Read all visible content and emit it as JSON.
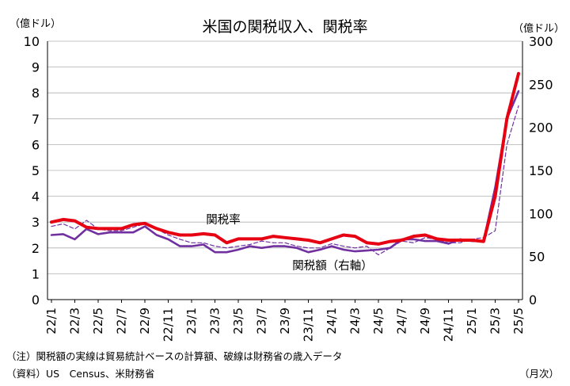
{
  "chart_data": {
    "type": "line",
    "title": "米国の関税収入、関税率",
    "left_axis": {
      "label": "（億ドル）",
      "min": 0,
      "max": 10,
      "ticks": [
        0,
        1,
        2,
        3,
        4,
        5,
        6,
        7,
        8,
        9,
        10
      ]
    },
    "right_axis": {
      "label": "（億ドル）",
      "min": 0,
      "max": 300,
      "ticks": [
        0,
        50,
        100,
        150,
        200,
        250,
        300
      ]
    },
    "xlabel": "（月次）",
    "x_tick_labels": [
      "22/1",
      "22/3",
      "22/5",
      "22/7",
      "22/9",
      "22/11",
      "23/1",
      "23/3",
      "23/5",
      "23/7",
      "23/9",
      "23/11",
      "24/1",
      "24/3",
      "24/5",
      "24/7",
      "24/9",
      "24/11",
      "25/1",
      "25/3",
      "25/5"
    ],
    "x": [
      "22/1",
      "22/2",
      "22/3",
      "22/4",
      "22/5",
      "22/6",
      "22/7",
      "22/8",
      "22/9",
      "22/10",
      "22/11",
      "22/12",
      "23/1",
      "23/2",
      "23/3",
      "23/4",
      "23/5",
      "23/6",
      "23/7",
      "23/8",
      "23/9",
      "23/10",
      "23/11",
      "23/12",
      "24/1",
      "24/2",
      "24/3",
      "24/4",
      "24/5",
      "24/6",
      "24/7",
      "24/8",
      "24/9",
      "24/10",
      "24/11",
      "24/12",
      "25/1",
      "25/2",
      "25/3",
      "25/4",
      "25/5"
    ],
    "grid": true,
    "series": [
      {
        "name": "関税率",
        "axis": "left",
        "style": "solid-thick",
        "color": "#e60012",
        "values": [
          3.0,
          3.1,
          3.05,
          2.8,
          2.75,
          2.75,
          2.75,
          2.9,
          2.95,
          2.75,
          2.6,
          2.5,
          2.5,
          2.55,
          2.5,
          2.2,
          2.35,
          2.35,
          2.35,
          2.45,
          2.4,
          2.35,
          2.3,
          2.2,
          2.35,
          2.5,
          2.45,
          2.2,
          2.15,
          2.25,
          2.3,
          2.45,
          2.5,
          2.35,
          2.3,
          2.3,
          2.3,
          2.25,
          4.0,
          7.0,
          8.75
        ]
      },
      {
        "name": "関税額（右軸）",
        "axis": "right",
        "style": "solid",
        "color": "#7030a0",
        "values": [
          75,
          76,
          70,
          82,
          76,
          78,
          78,
          78,
          85,
          75,
          70,
          62,
          62,
          64,
          55,
          55,
          58,
          62,
          60,
          62,
          62,
          60,
          55,
          58,
          62,
          58,
          56,
          57,
          58,
          60,
          70,
          70,
          68,
          68,
          65,
          70,
          68,
          68,
          130,
          210,
          242
        ]
      },
      {
        "name": "歳入データ（破線）",
        "axis": "right",
        "style": "dashed",
        "color": "#7030a0",
        "values": [
          85,
          88,
          82,
          92,
          82,
          80,
          80,
          84,
          88,
          82,
          75,
          70,
          66,
          66,
          62,
          60,
          62,
          64,
          68,
          66,
          66,
          62,
          60,
          60,
          65,
          62,
          60,
          62,
          52,
          60,
          68,
          66,
          72,
          70,
          66,
          66,
          70,
          72,
          80,
          180,
          225
        ]
      }
    ],
    "annotations": [
      {
        "text": "関税率",
        "color": "#e60012"
      },
      {
        "text": "関税額（右軸）",
        "color": "#7030a0"
      }
    ]
  },
  "notes": {
    "note1": "（注）関税額の実線は貿易統計ベースの計算額、破線は財務省の歳入データ",
    "note2": "（資料）US　Census、米財務省",
    "xunit": "（月次）"
  }
}
